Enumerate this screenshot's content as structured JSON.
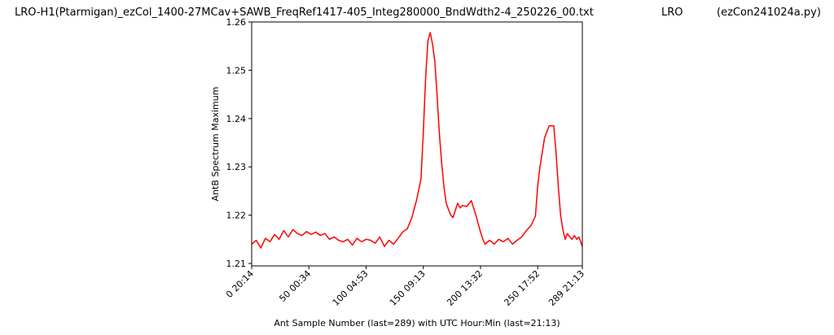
{
  "title": {
    "file": "LRO-H1(Ptarmigan)_ezCol_1400-27MCav+SAWB_FreqRef1417-405_Integ280000_BndWdth2-4_250226_00.txt",
    "station": "LRO",
    "program": "(ezCon241024a.py)"
  },
  "chart_data": {
    "type": "line",
    "xlabel": "Ant Sample Number (last=289) with UTC Hour:Min (last=21:13)",
    "ylabel": "AntB Spectrum Maximum",
    "xlim": [
      0,
      289
    ],
    "ylim": [
      1.2095,
      1.26
    ],
    "grid": false,
    "x_ticks": [
      {
        "value": 0,
        "label": "0 20:14"
      },
      {
        "value": 50,
        "label": "50 00:34"
      },
      {
        "value": 100,
        "label": "100 04:53"
      },
      {
        "value": 150,
        "label": "150 09:13"
      },
      {
        "value": 200,
        "label": "200 13:32"
      },
      {
        "value": 250,
        "label": "250 17:52"
      },
      {
        "value": 289,
        "label": "289 21:13"
      }
    ],
    "y_ticks": [
      {
        "value": 1.21,
        "label": "1.21"
      },
      {
        "value": 1.22,
        "label": "1.22"
      },
      {
        "value": 1.23,
        "label": "1.23"
      },
      {
        "value": 1.24,
        "label": "1.24"
      },
      {
        "value": 1.25,
        "label": "1.25"
      },
      {
        "value": 1.26,
        "label": "1.26"
      }
    ],
    "series": [
      {
        "color": "#ff0000",
        "x": [
          0,
          4,
          8,
          12,
          16,
          20,
          24,
          28,
          32,
          36,
          40,
          44,
          48,
          52,
          56,
          60,
          64,
          68,
          72,
          76,
          80,
          84,
          88,
          92,
          96,
          100,
          104,
          108,
          112,
          116,
          120,
          124,
          128,
          132,
          136,
          140,
          144,
          148,
          150,
          152,
          154,
          156,
          158,
          160,
          162,
          164,
          166,
          168,
          170,
          172,
          174,
          176,
          178,
          180,
          182,
          184,
          188,
          192,
          196,
          200,
          202,
          204,
          208,
          212,
          216,
          220,
          224,
          228,
          232,
          236,
          240,
          244,
          248,
          250,
          252,
          256,
          260,
          264,
          266,
          268,
          270,
          272,
          274,
          276,
          278,
          280,
          282,
          284,
          286,
          289
        ],
        "values": [
          1.214,
          1.2148,
          1.2132,
          1.2152,
          1.2145,
          1.216,
          1.215,
          1.2168,
          1.2155,
          1.217,
          1.2162,
          1.2158,
          1.2166,
          1.216,
          1.2165,
          1.2158,
          1.2162,
          1.215,
          1.2155,
          1.2148,
          1.2145,
          1.215,
          1.2138,
          1.2152,
          1.2145,
          1.215,
          1.2148,
          1.2142,
          1.2155,
          1.2135,
          1.2148,
          1.214,
          1.2152,
          1.2165,
          1.2172,
          1.2195,
          1.223,
          1.2275,
          1.237,
          1.248,
          1.256,
          1.2578,
          1.2555,
          1.252,
          1.245,
          1.237,
          1.231,
          1.226,
          1.2225,
          1.2212,
          1.22,
          1.2195,
          1.221,
          1.2225,
          1.2215,
          1.222,
          1.2218,
          1.223,
          1.22,
          1.2165,
          1.215,
          1.214,
          1.2148,
          1.214,
          1.215,
          1.2145,
          1.2152,
          1.214,
          1.2148,
          1.2155,
          1.2168,
          1.2178,
          1.2198,
          1.226,
          1.23,
          1.236,
          1.2385,
          1.2385,
          1.233,
          1.226,
          1.22,
          1.217,
          1.215,
          1.2162,
          1.2155,
          1.215,
          1.2158,
          1.215,
          1.2155,
          1.2135
        ]
      }
    ]
  }
}
